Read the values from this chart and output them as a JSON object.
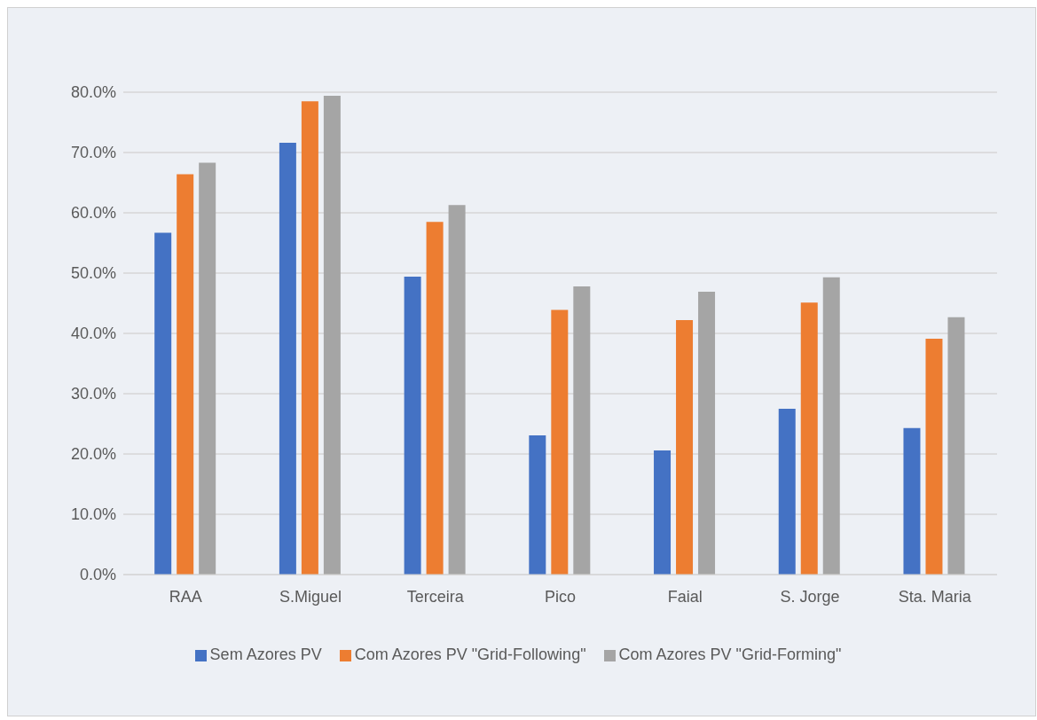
{
  "chart_data": {
    "type": "bar",
    "categories": [
      "RAA",
      "S.Miguel",
      "Terceira",
      "Pico",
      "Faial",
      "S. Jorge",
      "Sta. Maria"
    ],
    "series": [
      {
        "name": "Sem Azores PV",
        "color": "#4472c4",
        "values": [
          56.7,
          71.6,
          49.4,
          23.1,
          20.6,
          27.5,
          24.3
        ]
      },
      {
        "name": "Com Azores PV \"Grid-Following\"",
        "color": "#ed7d31",
        "values": [
          66.4,
          78.5,
          58.5,
          43.9,
          42.2,
          45.1,
          39.1
        ]
      },
      {
        "name": "Com Azores PV \"Grid-Forming\"",
        "color": "#a5a5a5",
        "values": [
          68.3,
          79.4,
          61.3,
          47.8,
          46.9,
          49.3,
          42.7
        ]
      }
    ],
    "ylim": [
      0,
      80
    ],
    "yticks": [
      {
        "value": 0,
        "label": "0.0%"
      },
      {
        "value": 10,
        "label": "10.0%"
      },
      {
        "value": 20,
        "label": "20.0%"
      },
      {
        "value": 30,
        "label": "30.0%"
      },
      {
        "value": 40,
        "label": "40.0%"
      },
      {
        "value": 50,
        "label": "50.0%"
      },
      {
        "value": 60,
        "label": "60.0%"
      },
      {
        "value": 70,
        "label": "70.0%"
      },
      {
        "value": 80,
        "label": "80.0%"
      }
    ],
    "grid": "y",
    "legend": "bottom"
  }
}
